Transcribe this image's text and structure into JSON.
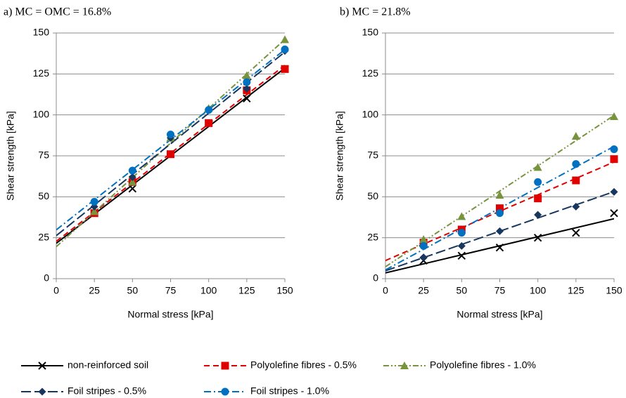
{
  "chart_data": [
    {
      "type": "scatter",
      "title": "a) MC = OMC = 16.8%",
      "x_label": "Normal stress [kPa]",
      "y_label": "Shear strength [kPa]",
      "x": [
        25,
        50,
        75,
        100,
        125,
        150
      ],
      "xlim": [
        0,
        150
      ],
      "xticks": [
        0,
        25,
        50,
        75,
        100,
        125,
        150
      ],
      "ylim": [
        0,
        150
      ],
      "yticks": [
        0,
        25,
        50,
        75,
        100,
        125,
        150
      ],
      "grid": true,
      "trendline": "linear",
      "series": [
        {
          "name": "non-reinforced soil",
          "color": "#000000",
          "marker": "x",
          "dash": "solid",
          "values": [
            40,
            55,
            76,
            95,
            110,
            128
          ]
        },
        {
          "name": "Polyolefine fibres - 0.5%",
          "color": "#e00000",
          "marker": "square",
          "dash": "dash",
          "values": [
            40,
            59,
            76,
            95,
            115,
            128
          ]
        },
        {
          "name": "Polyolefine fibres - 1.0%",
          "color": "#77933c",
          "marker": "triangle",
          "dash": "dash-dot-dot",
          "values": [
            41,
            59,
            86,
            104,
            124,
            146
          ]
        },
        {
          "name": "Foil stripes - 0.5%",
          "color": "#17375e",
          "marker": "diamond",
          "dash": "long-dash",
          "values": [
            44,
            62,
            86,
            103,
            116,
            139
          ]
        },
        {
          "name": "Foil stripes - 1.0%",
          "color": "#0070c0",
          "marker": "circle",
          "dash": "dash-dot",
          "values": [
            47,
            66,
            88,
            103,
            120,
            140
          ]
        }
      ]
    },
    {
      "type": "scatter",
      "title": "b) MC = 21.8%",
      "x_label": "Normal stress [kPa]",
      "y_label": "Shear strength [kPa]",
      "x": [
        25,
        50,
        75,
        100,
        125,
        150
      ],
      "xlim": [
        0,
        150
      ],
      "xticks": [
        0,
        25,
        50,
        75,
        100,
        125,
        150
      ],
      "ylim": [
        0,
        150
      ],
      "yticks": [
        0,
        25,
        50,
        75,
        100,
        125,
        150
      ],
      "grid": true,
      "trendline": "linear",
      "series": [
        {
          "color": "#000000",
          "marker": "x",
          "dash": "solid",
          "values": [
            11,
            14,
            19,
            25,
            28,
            40
          ]
        },
        {
          "color": "#e00000",
          "marker": "square",
          "dash": "dash",
          "values": [
            22,
            30,
            43,
            49,
            60,
            73
          ]
        },
        {
          "color": "#77933c",
          "marker": "triangle",
          "dash": "dash-dot-dot",
          "values": [
            24,
            38,
            51,
            68,
            87,
            99
          ]
        },
        {
          "color": "#17375e",
          "marker": "diamond",
          "dash": "long-dash",
          "values": [
            13,
            20,
            29,
            39,
            44,
            53
          ]
        },
        {
          "color": "#0070c0",
          "marker": "circle",
          "dash": "dash-dot",
          "values": [
            20,
            28,
            40,
            59,
            70,
            79
          ]
        }
      ]
    }
  ]
}
